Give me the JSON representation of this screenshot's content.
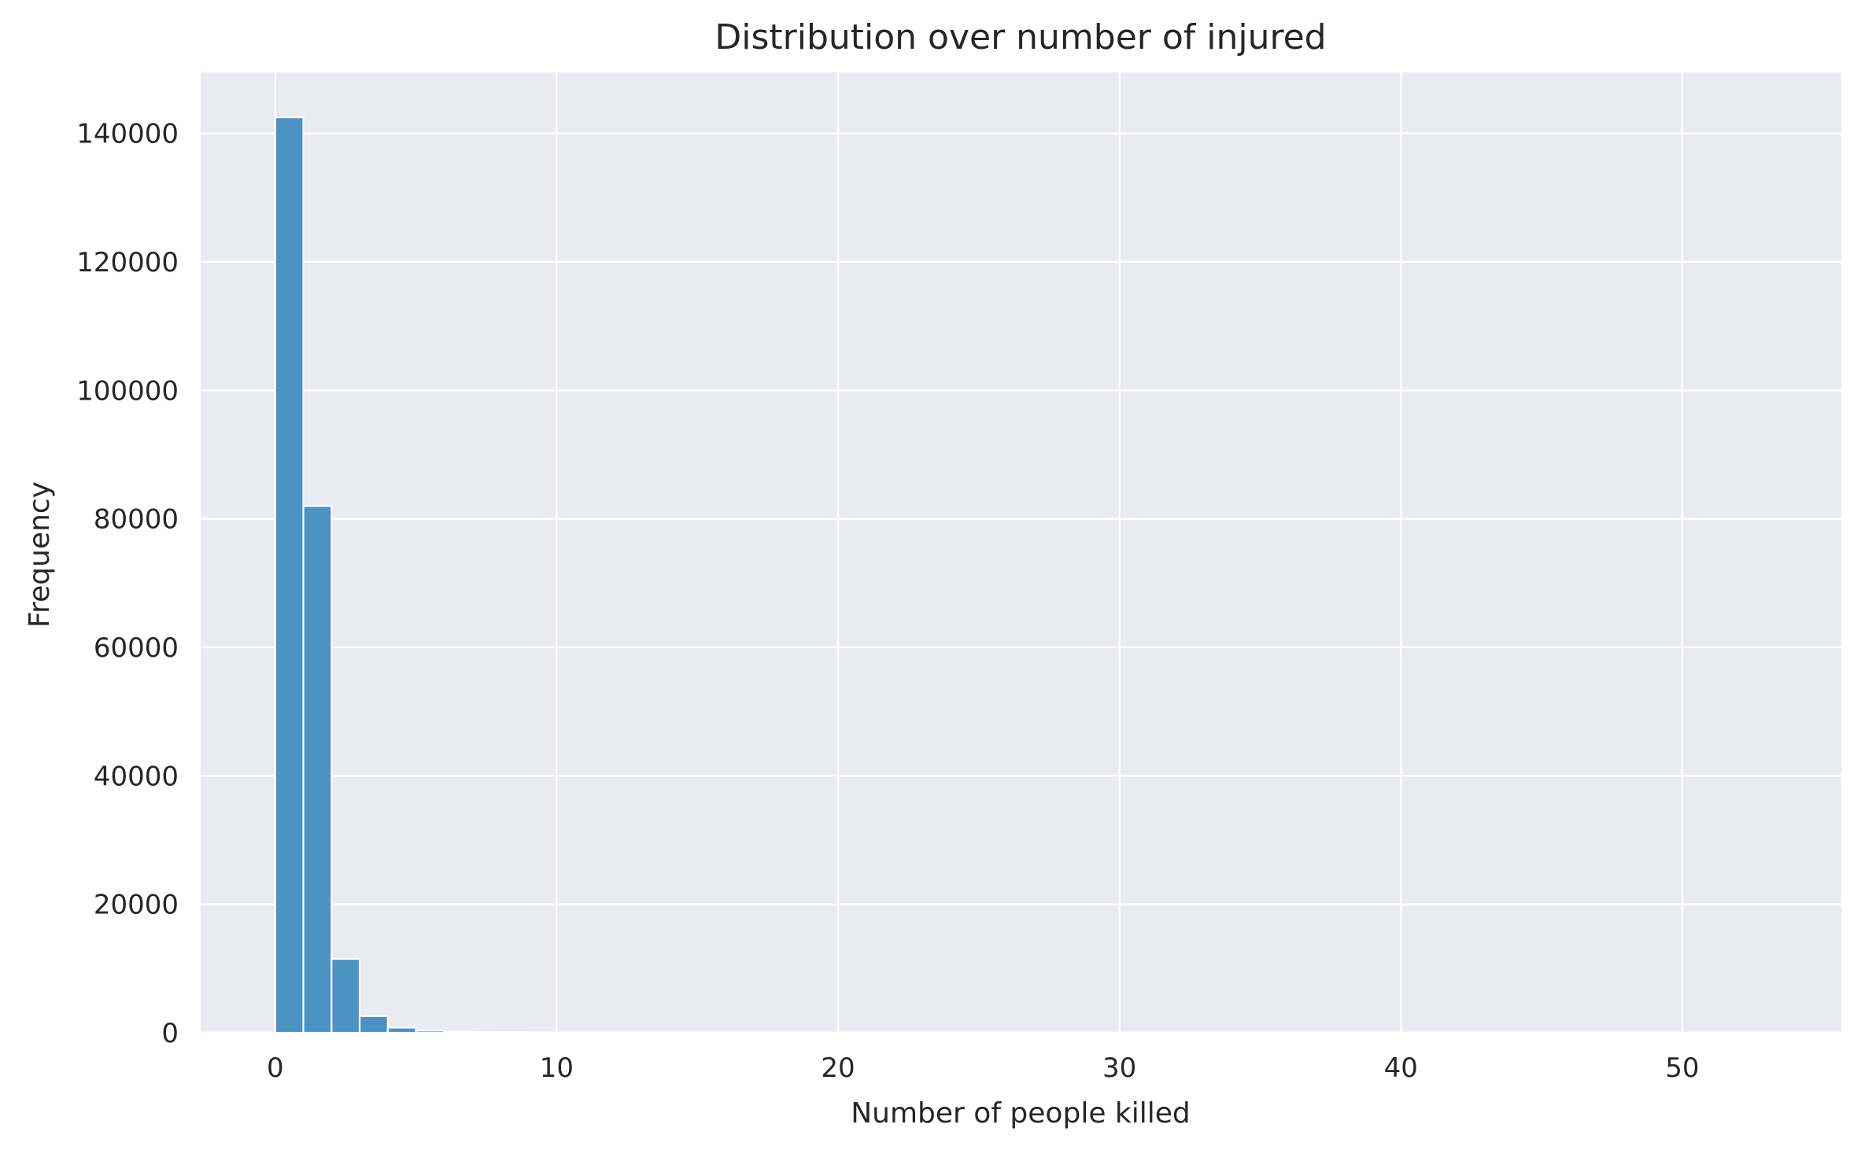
{
  "chart_data": {
    "type": "bar",
    "title": "Distribution over number of injured",
    "xlabel": "Number of people killed",
    "ylabel": "Frequency",
    "xlim": [
      -2.65,
      55.65
    ],
    "ylim": [
      0,
      149500
    ],
    "x_ticks": [
      0,
      10,
      20,
      30,
      40,
      50
    ],
    "y_ticks": [
      0,
      20000,
      40000,
      60000,
      80000,
      100000,
      120000,
      140000
    ],
    "bin_width": 1,
    "bins": [
      {
        "x0": 0,
        "x1": 1,
        "value": 142500
      },
      {
        "x0": 1,
        "x1": 2,
        "value": 82000
      },
      {
        "x0": 2,
        "x1": 3,
        "value": 11500
      },
      {
        "x0": 3,
        "x1": 4,
        "value": 2600
      },
      {
        "x0": 4,
        "x1": 5,
        "value": 800
      },
      {
        "x0": 5,
        "x1": 6,
        "value": 350
      },
      {
        "x0": 6,
        "x1": 7,
        "value": 180
      },
      {
        "x0": 7,
        "x1": 8,
        "value": 100
      },
      {
        "x0": 8,
        "x1": 9,
        "value": 60
      },
      {
        "x0": 9,
        "x1": 10,
        "value": 30
      }
    ],
    "grid": true,
    "colors": {
      "bar_fill": "#4c92c3",
      "bar_edge": "#ffffff",
      "plot_background": "#eaeaf2",
      "grid": "#ffffff",
      "text": "#262626"
    }
  }
}
